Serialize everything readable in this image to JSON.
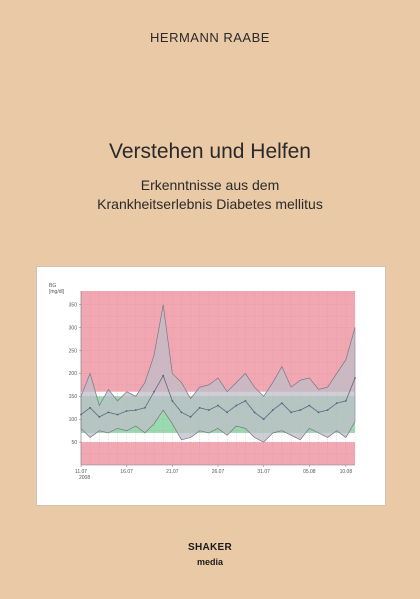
{
  "cover": {
    "author": "HERMANN RAABE",
    "title": "Verstehen und Helfen",
    "subtitle_line1": "Erkenntnisse aus dem",
    "subtitle_line2": "Krankheitserlebnis Diabetes mellitus"
  },
  "publisher": {
    "name": "SHAKER",
    "sub": "media"
  },
  "chart_data": {
    "type": "area",
    "ylabel": "BG",
    "yunit": "[mg/dl]",
    "ylim": [
      0,
      380
    ],
    "yticks": [
      50,
      100,
      150,
      200,
      250,
      300,
      350
    ],
    "xlim": [
      0,
      30
    ],
    "x_tick_positions": [
      0,
      5,
      10,
      15,
      20,
      25,
      29
    ],
    "x_tick_labels": [
      "11.07",
      "16.07",
      "21.07",
      "26.07",
      "31.07",
      "05.08",
      "10.08"
    ],
    "x_start_year": "2008",
    "bands": [
      {
        "from": 0,
        "to": 50,
        "color": "#f1a8b2"
      },
      {
        "from": 50,
        "to": 70,
        "color": "#ffffff"
      },
      {
        "from": 70,
        "to": 150,
        "color": "#96dcae"
      },
      {
        "from": 150,
        "to": 160,
        "color": "#ffffff"
      },
      {
        "from": 160,
        "to": 380,
        "color": "#f1a8b2"
      }
    ],
    "series": [
      {
        "role": "max",
        "x": [
          0,
          1,
          2,
          3,
          4,
          5,
          6,
          7,
          8,
          9,
          10,
          11,
          12,
          13,
          14,
          15,
          16,
          17,
          18,
          19,
          20,
          21,
          22,
          23,
          24,
          25,
          26,
          27,
          28,
          29,
          30
        ],
        "values": [
          150,
          200,
          130,
          165,
          140,
          160,
          150,
          180,
          240,
          350,
          200,
          180,
          145,
          170,
          175,
          190,
          160,
          180,
          200,
          170,
          150,
          180,
          215,
          170,
          185,
          190,
          165,
          170,
          200,
          230,
          300
        ]
      },
      {
        "role": "min",
        "x": [
          0,
          1,
          2,
          3,
          4,
          5,
          6,
          7,
          8,
          9,
          10,
          11,
          12,
          13,
          14,
          15,
          16,
          17,
          18,
          19,
          20,
          21,
          22,
          23,
          24,
          25,
          26,
          27,
          28,
          29,
          30
        ],
        "values": [
          80,
          60,
          75,
          70,
          80,
          75,
          85,
          70,
          90,
          120,
          90,
          55,
          60,
          75,
          70,
          80,
          65,
          85,
          80,
          60,
          50,
          70,
          75,
          65,
          55,
          80,
          70,
          60,
          75,
          60,
          95
        ]
      },
      {
        "role": "median",
        "x": [
          0,
          1,
          2,
          3,
          4,
          5,
          6,
          7,
          8,
          9,
          10,
          11,
          12,
          13,
          14,
          15,
          16,
          17,
          18,
          19,
          20,
          21,
          22,
          23,
          24,
          25,
          26,
          27,
          28,
          29,
          30
        ],
        "values": [
          110,
          125,
          105,
          115,
          110,
          118,
          120,
          125,
          160,
          195,
          140,
          115,
          105,
          125,
          120,
          130,
          115,
          130,
          140,
          115,
          100,
          120,
          135,
          115,
          120,
          130,
          115,
          120,
          135,
          140,
          190
        ]
      }
    ],
    "grid": true
  }
}
